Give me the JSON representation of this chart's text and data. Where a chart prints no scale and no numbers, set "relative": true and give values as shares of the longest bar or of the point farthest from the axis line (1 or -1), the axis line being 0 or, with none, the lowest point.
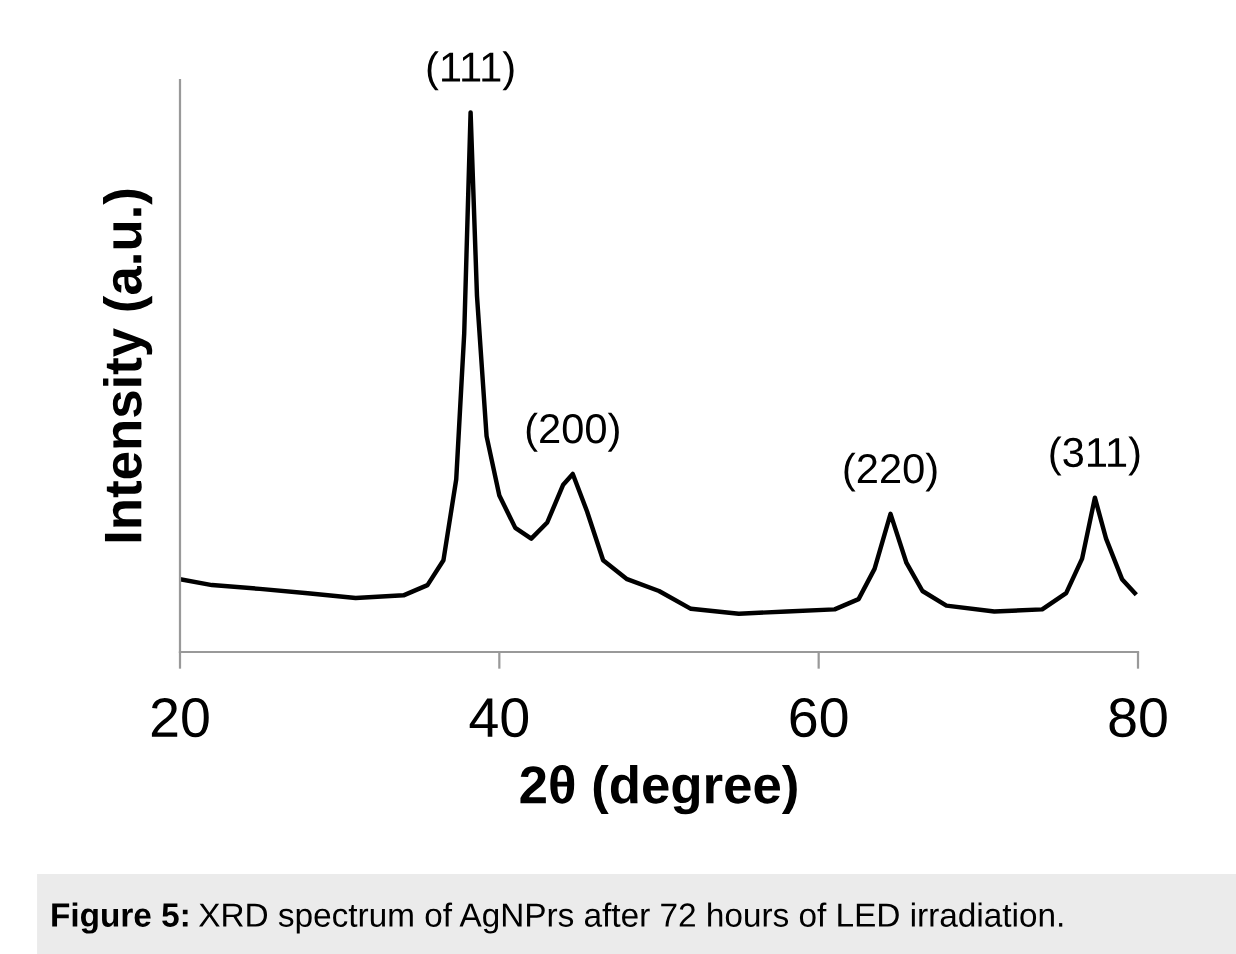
{
  "chart_data": {
    "type": "line",
    "relative": true,
    "xlabel": "2θ (degree)",
    "ylabel": "Intensity (a.u.)",
    "xlim": [
      20,
      80
    ],
    "xticks": [
      20,
      40,
      60,
      80
    ],
    "grid": false,
    "legend": false,
    "marker": "none",
    "line_style": "solid",
    "tick_labels": "x",
    "x": [
      20,
      22,
      25,
      28,
      31,
      34,
      35.5,
      36.5,
      37.3,
      37.8,
      38.2,
      38.6,
      39.2,
      40,
      41,
      42,
      43,
      44,
      44.6,
      45.5,
      46.5,
      48,
      50,
      52,
      55,
      58,
      61,
      62.5,
      63.5,
      64.5,
      65.5,
      66.5,
      68,
      71,
      74,
      75.5,
      76.5,
      77.3,
      78,
      79,
      79.8
    ],
    "series": [
      {
        "color": "#000000",
        "values": [
          0.135,
          0.124,
          0.117,
          0.109,
          0.1,
          0.105,
          0.124,
          0.17,
          0.32,
          0.59,
          1.0,
          0.66,
          0.4,
          0.29,
          0.23,
          0.21,
          0.24,
          0.31,
          0.33,
          0.26,
          0.17,
          0.135,
          0.113,
          0.08,
          0.071,
          0.075,
          0.079,
          0.098,
          0.154,
          0.256,
          0.165,
          0.113,
          0.086,
          0.075,
          0.079,
          0.109,
          0.173,
          0.286,
          0.21,
          0.135,
          0.109
        ]
      }
    ],
    "annotations": [
      {
        "text": "(111)",
        "x": 38.2,
        "y": 1.0
      },
      {
        "text": "(200)",
        "x": 44.6,
        "y": 0.33
      },
      {
        "text": "(220)",
        "x": 64.5,
        "y": 0.256
      },
      {
        "text": "(311)",
        "x": 77.3,
        "y": 0.286
      },
      "Figure 5: XRD spectrum of AgNPrs after 72 hours of LED irradiation."
    ]
  }
}
